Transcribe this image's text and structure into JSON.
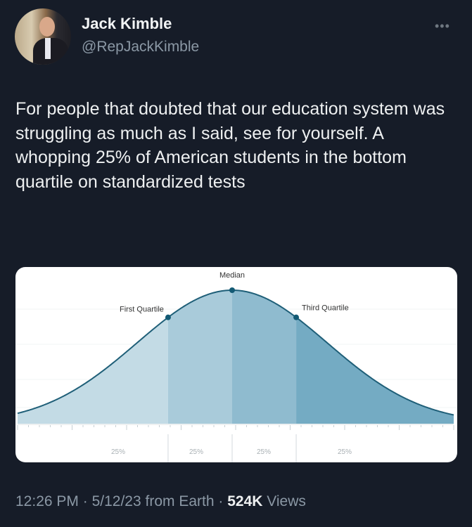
{
  "author": {
    "name": "Jack Kimble",
    "handle": "@RepJackKimble"
  },
  "more_icon": "ellipsis-icon",
  "tweet_text": "For people that doubted that our education system was struggling as much as I said, see for yourself.  A whopping 25% of American students in the bottom quartile on standardized tests",
  "footer": {
    "time": "12:26 PM",
    "date": "5/12/23",
    "source": "from Earth",
    "views_count": "524K",
    "views_label": "Views",
    "separator": "·"
  },
  "chart_data": {
    "type": "area",
    "distribution": "normal",
    "annotations": [
      "First Quartile",
      "Median",
      "Third Quartile"
    ],
    "segments": [
      {
        "label": "25%",
        "value": 25,
        "color": "#c3dbe5"
      },
      {
        "label": "25%",
        "value": 25,
        "color": "#a9cbda"
      },
      {
        "label": "25%",
        "value": 25,
        "color": "#8fbbcf"
      },
      {
        "label": "25%",
        "value": 25,
        "color": "#74abc3"
      }
    ],
    "line_color": "#1f5f78",
    "grid": true
  }
}
